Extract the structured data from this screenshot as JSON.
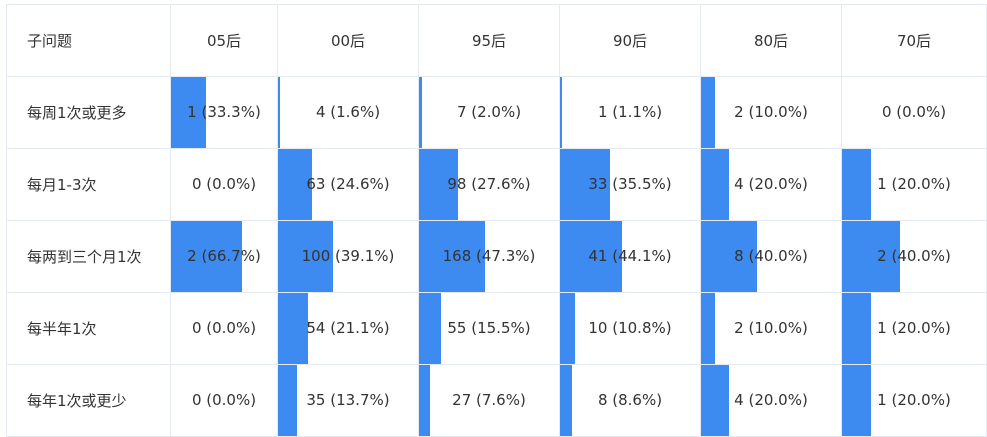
{
  "header": {
    "subquestion_label": "子问题",
    "columns": [
      "05后",
      "00后",
      "95后",
      "90后",
      "80后",
      "70后"
    ]
  },
  "colors": {
    "bar": "#3d8af0",
    "border": "#e5eaf2",
    "text": "#333333"
  },
  "rows": [
    {
      "label": "每周1次或更多",
      "cells": [
        {
          "text": "1 (33.3%)",
          "pct": 33.3
        },
        {
          "text": "4 (1.6%)",
          "pct": 1.6
        },
        {
          "text": "7 (2.0%)",
          "pct": 2.0
        },
        {
          "text": "1 (1.1%)",
          "pct": 1.1
        },
        {
          "text": "2 (10.0%)",
          "pct": 10.0
        },
        {
          "text": "0 (0.0%)",
          "pct": 0.0
        }
      ]
    },
    {
      "label": "每月1-3次",
      "cells": [
        {
          "text": "0 (0.0%)",
          "pct": 0.0
        },
        {
          "text": "63 (24.6%)",
          "pct": 24.6
        },
        {
          "text": "98 (27.6%)",
          "pct": 27.6
        },
        {
          "text": "33 (35.5%)",
          "pct": 35.5
        },
        {
          "text": "4 (20.0%)",
          "pct": 20.0
        },
        {
          "text": "1 (20.0%)",
          "pct": 20.0
        }
      ]
    },
    {
      "label": "每两到三个月1次",
      "cells": [
        {
          "text": "2 (66.7%)",
          "pct": 66.7
        },
        {
          "text": "100 (39.1%)",
          "pct": 39.1
        },
        {
          "text": "168 (47.3%)",
          "pct": 47.3
        },
        {
          "text": "41 (44.1%)",
          "pct": 44.1
        },
        {
          "text": "8 (40.0%)",
          "pct": 40.0
        },
        {
          "text": "2 (40.0%)",
          "pct": 40.0
        }
      ]
    },
    {
      "label": "每半年1次",
      "cells": [
        {
          "text": "0 (0.0%)",
          "pct": 0.0
        },
        {
          "text": "54 (21.1%)",
          "pct": 21.1
        },
        {
          "text": "55 (15.5%)",
          "pct": 15.5
        },
        {
          "text": "10 (10.8%)",
          "pct": 10.8
        },
        {
          "text": "2 (10.0%)",
          "pct": 10.0
        },
        {
          "text": "1 (20.0%)",
          "pct": 20.0
        }
      ]
    },
    {
      "label": "每年1次或更少",
      "cells": [
        {
          "text": "0 (0.0%)",
          "pct": 0.0
        },
        {
          "text": "35 (13.7%)",
          "pct": 13.7
        },
        {
          "text": "27 (7.6%)",
          "pct": 7.6
        },
        {
          "text": "8 (8.6%)",
          "pct": 8.6
        },
        {
          "text": "4 (20.0%)",
          "pct": 20.0
        },
        {
          "text": "1 (20.0%)",
          "pct": 20.0
        }
      ]
    }
  ]
}
